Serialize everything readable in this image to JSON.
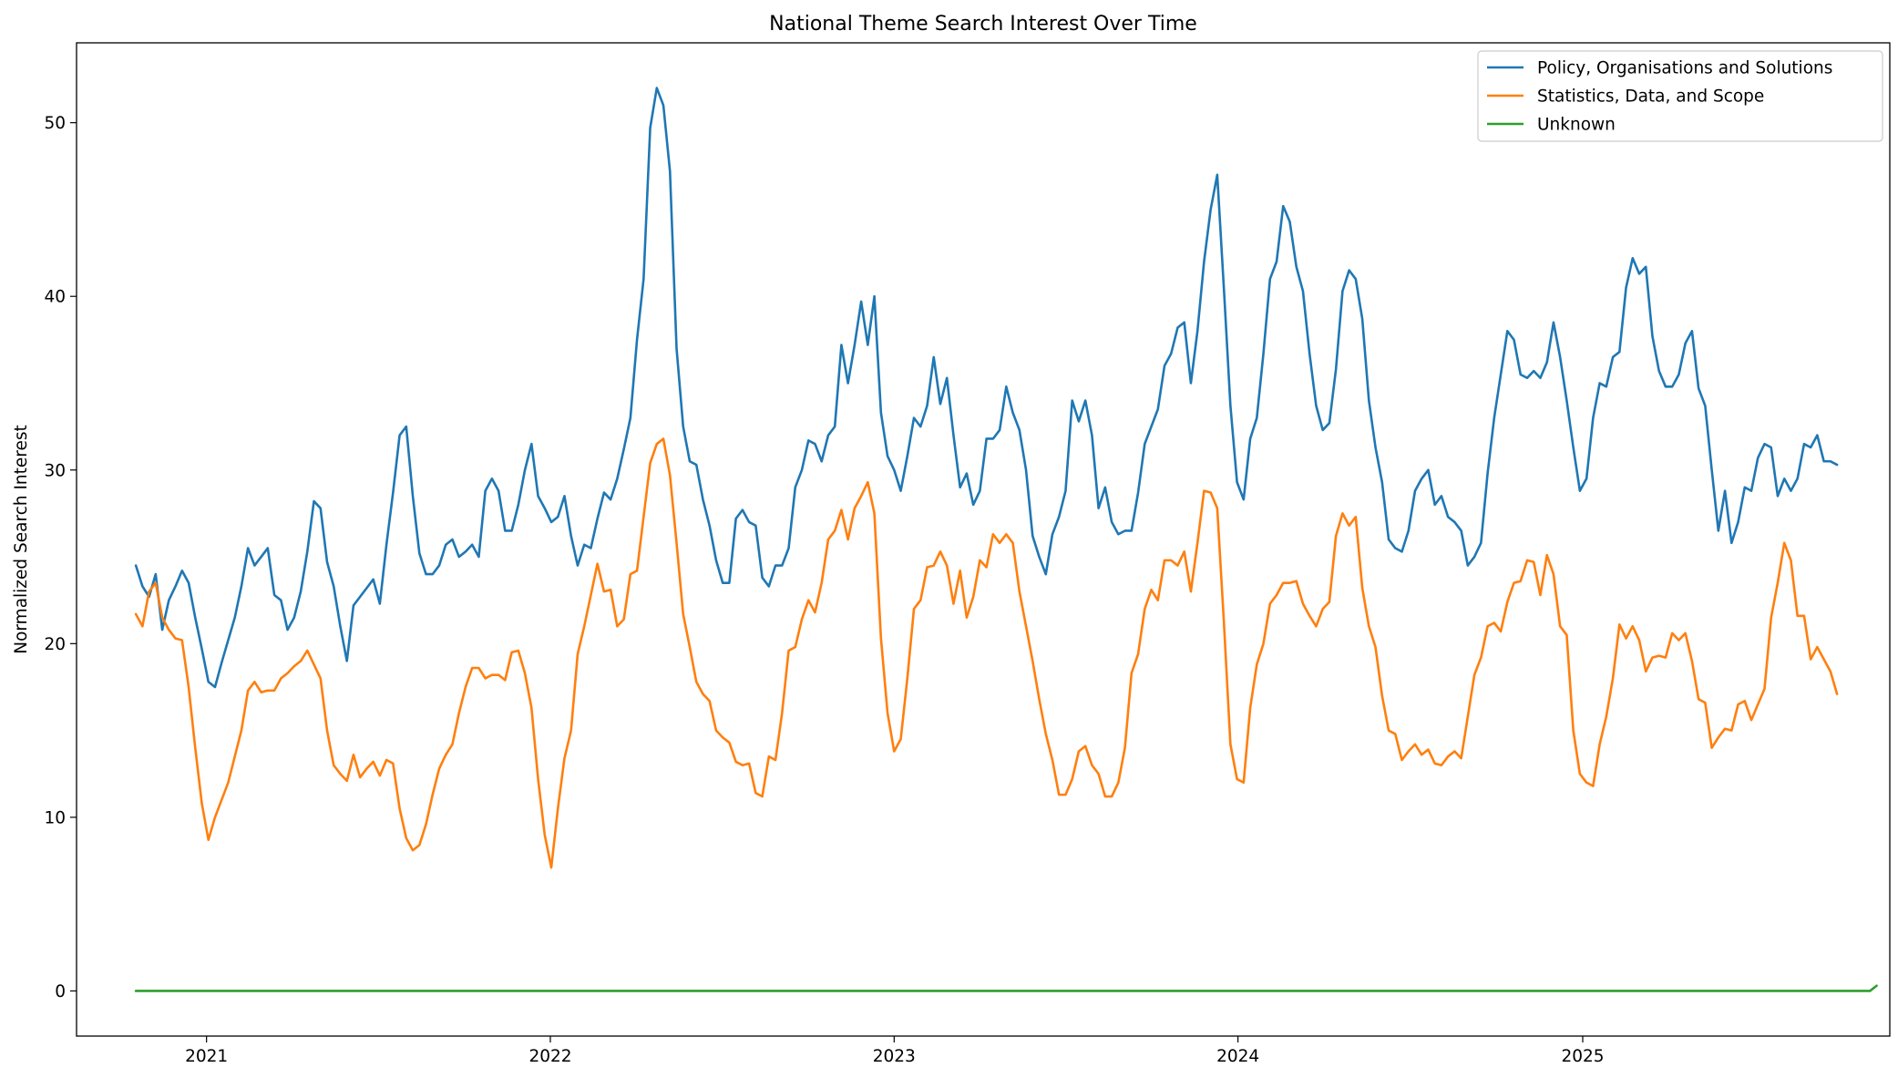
{
  "chart_data": {
    "type": "line",
    "title": "National Theme Search Interest Over Time",
    "xlabel": "",
    "ylabel": "Normalized Search Interest",
    "xlim": [
      "2020-08-16",
      "2025-11-23"
    ],
    "ylim": [
      -2.6,
      54.6
    ],
    "x_ticks": [
      "2021",
      "2022",
      "2023",
      "2024",
      "2025"
    ],
    "y_ticks": [
      0,
      10,
      20,
      30,
      40,
      50
    ],
    "grid": false,
    "legend_position": "top-right",
    "x_start": "2020-10-18",
    "x_step_days": 7,
    "series": [
      {
        "name": "Policy, Organisations and Solutions",
        "color": "#1f77b4",
        "values": [
          24.5,
          23.3,
          22.7,
          24.0,
          20.8,
          22.5,
          23.3,
          24.2,
          23.5,
          21.5,
          19.7,
          17.8,
          17.5,
          18.9,
          20.2,
          21.5,
          23.3,
          25.5,
          24.5,
          25.0,
          25.5,
          22.8,
          22.5,
          20.8,
          21.5,
          23.0,
          25.3,
          28.2,
          27.8,
          24.7,
          23.3,
          21.0,
          19.0,
          22.2,
          22.7,
          23.2,
          23.7,
          22.3,
          25.7,
          28.7,
          32.0,
          32.5,
          28.5,
          25.2,
          24.0,
          24.0,
          24.5,
          25.7,
          26.0,
          25.0,
          25.3,
          25.7,
          25.0,
          28.8,
          29.5,
          28.8,
          26.5,
          26.5,
          28.0,
          30.0,
          31.5,
          28.5,
          27.8,
          27.0,
          27.3,
          28.5,
          26.2,
          24.5,
          25.7,
          25.5,
          27.2,
          28.7,
          28.3,
          29.5,
          31.2,
          33.0,
          37.5,
          41.0,
          49.7,
          52.0,
          51.0,
          47.2,
          37.0,
          32.5,
          30.5,
          30.3,
          28.3,
          26.8,
          24.8,
          23.5,
          23.5,
          27.2,
          27.7,
          27.0,
          26.8,
          23.8,
          23.3,
          24.5,
          24.5,
          25.5,
          29.0,
          30.0,
          31.7,
          31.5,
          30.5,
          32.0,
          32.5,
          37.2,
          35.0,
          37.2,
          39.7,
          37.2,
          40.0,
          33.3,
          30.8,
          30.0,
          28.8,
          30.8,
          33.0,
          32.5,
          33.7,
          36.5,
          33.8,
          35.3,
          32.0,
          29.0,
          29.8,
          28.0,
          28.8,
          31.8,
          31.8,
          32.3,
          34.8,
          33.3,
          32.3,
          30.0,
          26.2,
          25.0,
          24.0,
          26.3,
          27.3,
          28.8,
          34.0,
          32.8,
          34.0,
          32.0,
          27.8,
          29.0,
          27.0,
          26.3,
          26.5,
          26.5,
          28.7,
          31.5,
          32.5,
          33.5,
          36.0,
          36.7,
          38.2,
          38.5,
          35.0,
          38.0,
          42.0,
          45.0,
          47.0,
          40.5,
          33.7,
          29.3,
          28.3,
          31.8,
          33.0,
          36.7,
          41.0,
          42.0,
          45.2,
          44.3,
          41.7,
          40.3,
          36.7,
          33.7,
          32.3,
          32.7,
          35.8,
          40.3,
          41.5,
          41.0,
          38.7,
          34.0,
          31.3,
          29.3,
          26.0,
          25.5,
          25.3,
          26.5,
          28.8,
          29.5,
          30.0,
          28.0,
          28.5,
          27.3,
          27.0,
          26.5,
          24.5,
          25.0,
          25.8,
          29.8,
          33.0,
          35.5,
          38.0,
          37.5,
          35.5,
          35.3,
          35.7,
          35.3,
          36.2,
          38.5,
          36.5,
          34.0,
          31.3,
          28.8,
          29.5,
          33.0,
          35.0,
          34.8,
          36.5,
          36.8,
          40.5,
          42.2,
          41.3,
          41.7,
          37.7,
          35.7,
          34.8,
          34.8,
          35.5,
          37.3,
          38.0,
          34.7,
          33.7,
          30.0,
          26.5,
          28.8,
          25.8,
          27.0,
          29.0,
          28.8,
          30.7,
          31.5,
          31.3,
          28.5,
          29.5,
          28.8,
          29.5,
          31.5,
          31.3,
          32.0,
          30.5,
          30.5,
          30.3
        ]
      },
      {
        "name": "Statistics, Data, and Scope",
        "color": "#ff7f0e",
        "values": [
          21.7,
          21.0,
          23.0,
          23.5,
          21.5,
          20.8,
          20.3,
          20.2,
          17.5,
          14.0,
          10.8,
          8.7,
          10.0,
          11.0,
          12.0,
          13.5,
          15.0,
          17.3,
          17.8,
          17.2,
          17.3,
          17.3,
          18.0,
          18.3,
          18.7,
          19.0,
          19.6,
          18.8,
          18.0,
          15.0,
          13.0,
          12.5,
          12.1,
          13.6,
          12.3,
          12.8,
          13.2,
          12.4,
          13.3,
          13.1,
          10.5,
          8.8,
          8.1,
          8.4,
          9.6,
          11.3,
          12.8,
          13.6,
          14.2,
          16.0,
          17.5,
          18.6,
          18.6,
          18.0,
          18.2,
          18.2,
          17.9,
          19.5,
          19.6,
          18.3,
          16.3,
          12.2,
          9.0,
          7.1,
          10.5,
          13.4,
          15.0,
          19.4,
          21.0,
          22.8,
          24.6,
          23.0,
          23.1,
          21.0,
          21.4,
          24.0,
          24.2,
          27.3,
          30.4,
          31.5,
          31.8,
          29.7,
          25.8,
          21.7,
          19.8,
          17.8,
          17.1,
          16.7,
          15.0,
          14.6,
          14.3,
          13.2,
          13.0,
          13.1,
          11.4,
          11.2,
          13.5,
          13.3,
          16.0,
          19.6,
          19.8,
          21.4,
          22.5,
          21.8,
          23.5,
          26.0,
          26.5,
          27.7,
          26.0,
          27.8,
          28.5,
          29.3,
          27.5,
          20.3,
          16.0,
          13.8,
          14.5,
          18.0,
          22.0,
          22.5,
          24.4,
          24.5,
          25.3,
          24.5,
          22.3,
          24.2,
          21.5,
          22.7,
          24.8,
          24.4,
          26.3,
          25.8,
          26.3,
          25.8,
          23.0,
          21.0,
          19.0,
          16.8,
          14.8,
          13.3,
          11.3,
          11.3,
          12.2,
          13.8,
          14.1,
          13.0,
          12.5,
          11.2,
          11.2,
          12.0,
          14.0,
          18.3,
          19.4,
          22.0,
          23.1,
          22.5,
          24.8,
          24.8,
          24.5,
          25.3,
          23.0,
          25.8,
          28.8,
          28.7,
          27.8,
          21.3,
          14.2,
          12.2,
          12.0,
          16.3,
          18.8,
          20.0,
          22.3,
          22.8,
          23.5,
          23.5,
          23.6,
          22.3,
          21.6,
          21.0,
          22.0,
          22.4,
          26.2,
          27.5,
          26.8,
          27.3,
          23.2,
          21.0,
          19.8,
          17.0,
          15.0,
          14.8,
          13.3,
          13.8,
          14.2,
          13.6,
          13.9,
          13.1,
          13.0,
          13.5,
          13.8,
          13.4,
          15.8,
          18.2,
          19.2,
          21.0,
          21.2,
          20.7,
          22.4,
          23.5,
          23.6,
          24.8,
          24.7,
          22.8,
          25.1,
          24.0,
          21.0,
          20.5,
          15.0,
          12.5,
          12.0,
          11.8,
          14.2,
          15.8,
          18.0,
          21.1,
          20.3,
          21.0,
          20.2,
          18.4,
          19.2,
          19.3,
          19.2,
          20.6,
          20.2,
          20.6,
          19.0,
          16.8,
          16.6,
          14.0,
          14.6,
          15.1,
          15.0,
          16.5,
          16.7,
          15.6,
          16.5,
          17.4,
          21.5,
          23.5,
          25.8,
          24.8,
          21.6,
          21.6,
          19.1,
          19.8,
          19.1,
          18.4,
          17.1
        ]
      },
      {
        "name": "Unknown",
        "color": "#2ca02c",
        "values": [
          0.0,
          0.0,
          0.0,
          0.0,
          0.0,
          0.0,
          0.0,
          0.0,
          0.0,
          0.0,
          0.0,
          0.0,
          0.0,
          0.0,
          0.0,
          0.0,
          0.0,
          0.0,
          0.0,
          0.0,
          0.0,
          0.0,
          0.0,
          0.0,
          0.0,
          0.0,
          0.0,
          0.0,
          0.0,
          0.0,
          0.0,
          0.0,
          0.0,
          0.0,
          0.0,
          0.0,
          0.0,
          0.0,
          0.0,
          0.0,
          0.0,
          0.0,
          0.0,
          0.0,
          0.0,
          0.0,
          0.0,
          0.0,
          0.0,
          0.0,
          0.0,
          0.0,
          0.0,
          0.0,
          0.0,
          0.0,
          0.0,
          0.0,
          0.0,
          0.0,
          0.0,
          0.0,
          0.0,
          0.0,
          0.0,
          0.0,
          0.0,
          0.0,
          0.0,
          0.0,
          0.0,
          0.0,
          0.0,
          0.0,
          0.0,
          0.0,
          0.0,
          0.0,
          0.0,
          0.0,
          0.0,
          0.0,
          0.0,
          0.0,
          0.0,
          0.0,
          0.0,
          0.0,
          0.0,
          0.0,
          0.0,
          0.0,
          0.0,
          0.0,
          0.0,
          0.0,
          0.0,
          0.0,
          0.0,
          0.0,
          0.0,
          0.0,
          0.0,
          0.0,
          0.0,
          0.0,
          0.0,
          0.0,
          0.0,
          0.0,
          0.0,
          0.0,
          0.0,
          0.0,
          0.0,
          0.0,
          0.0,
          0.0,
          0.0,
          0.0,
          0.0,
          0.0,
          0.0,
          0.0,
          0.0,
          0.0,
          0.0,
          0.0,
          0.0,
          0.0,
          0.0,
          0.0,
          0.0,
          0.0,
          0.0,
          0.0,
          0.0,
          0.0,
          0.0,
          0.0,
          0.0,
          0.0,
          0.0,
          0.0,
          0.0,
          0.0,
          0.0,
          0.0,
          0.0,
          0.0,
          0.0,
          0.0,
          0.0,
          0.0,
          0.0,
          0.0,
          0.0,
          0.0,
          0.0,
          0.0,
          0.0,
          0.0,
          0.0,
          0.0,
          0.0,
          0.0,
          0.0,
          0.0,
          0.0,
          0.0,
          0.0,
          0.0,
          0.0,
          0.0,
          0.0,
          0.0,
          0.0,
          0.0,
          0.0,
          0.0,
          0.0,
          0.0,
          0.0,
          0.0,
          0.0,
          0.0,
          0.0,
          0.0,
          0.0,
          0.0,
          0.0,
          0.0,
          0.0,
          0.0,
          0.0,
          0.0,
          0.0,
          0.0,
          0.0,
          0.0,
          0.0,
          0.0,
          0.0,
          0.0,
          0.0,
          0.0,
          0.0,
          0.0,
          0.0,
          0.0,
          0.0,
          0.0,
          0.0,
          0.0,
          0.0,
          0.0,
          0.0,
          0.0,
          0.0,
          0.0,
          0.0,
          0.0,
          0.0,
          0.0,
          0.0,
          0.0,
          0.0,
          0.0,
          0.0,
          0.0,
          0.0,
          0.0,
          0.0,
          0.0,
          0.0,
          0.0,
          0.0,
          0.0,
          0.0,
          0.0,
          0.0,
          0.0,
          0.0,
          0.0,
          0.0,
          0.0,
          0.0,
          0.0,
          0.0,
          0.0,
          0.0,
          0.0,
          0.0,
          0.0,
          0.0,
          0.0,
          0.0,
          0.0,
          0.0,
          0.0,
          0.0,
          0.0,
          0.0,
          0.0,
          0.3
        ]
      }
    ]
  }
}
